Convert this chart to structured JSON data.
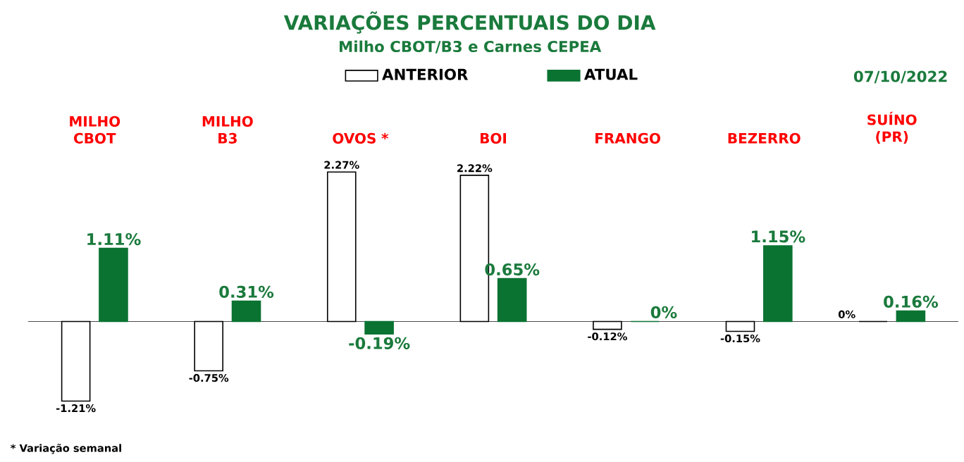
{
  "chart_data": {
    "type": "bar",
    "title": "VARIAÇÕES PERCENTUAIS DO DIA",
    "subtitle": "Milho CBOT/B3 e Carnes CEPEA",
    "categories": [
      "MILHO CBOT",
      "MILHO B3",
      "OVOS *",
      "BOI",
      "FRANGO",
      "BEZERRO",
      "SUÍNO (PR)"
    ],
    "series": [
      {
        "name": "ANTERIOR",
        "color": "#ffffff",
        "values": [
          -1.21,
          -0.75,
          2.27,
          2.22,
          -0.12,
          -0.15,
          0
        ],
        "value_labels": [
          "-1.21%",
          "-0.75%",
          "2.27%",
          "2.22%",
          "-0.12%",
          "-0.15%",
          "0%"
        ]
      },
      {
        "name": "ATUAL",
        "color": "#0b7332",
        "values": [
          1.11,
          0.31,
          -0.19,
          0.65,
          0,
          1.15,
          0.16
        ],
        "value_labels": [
          "1.11%",
          "0.31%",
          "-0.19%",
          "0.65%",
          "0%",
          "1.15%",
          "0.16%"
        ]
      }
    ],
    "legend": "top",
    "annotations": [
      "07/10/2022",
      "* Variação semanal"
    ]
  }
}
